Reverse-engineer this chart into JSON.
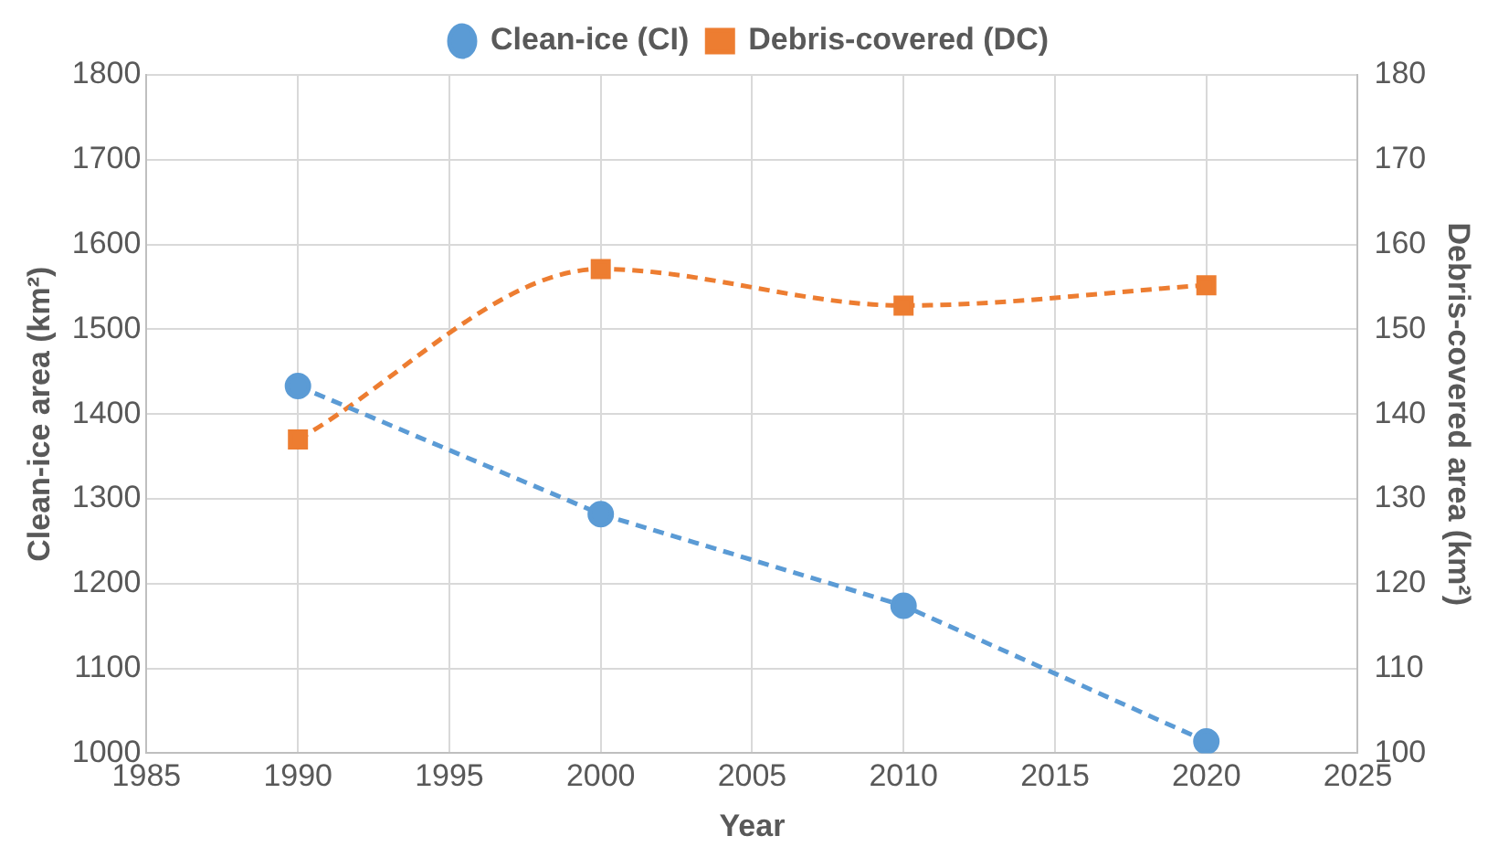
{
  "chart_data": {
    "type": "line",
    "xlabel": "Year",
    "ylabel": "Clean-ice area (km²)",
    "y2label": "Debris-covered area (km²)",
    "x": [
      1990,
      2000,
      2010,
      2020
    ],
    "series": [
      {
        "name": "Clean-ice (CI)",
        "color": "#5b9bd5",
        "values": [
          1433,
          1282,
          1174,
          1014
        ],
        "marker": "circle"
      },
      {
        "name": "Debris-covered (DC)",
        "color": "#ed7d31",
        "values": [
          137,
          157.1,
          152.8,
          155.2
        ],
        "axis": "y2",
        "marker": "square"
      }
    ],
    "xlim": [
      1985,
      2025
    ],
    "xticks": [
      1985,
      1990,
      1995,
      2000,
      2005,
      2010,
      2015,
      2020,
      2025
    ],
    "ylim": [
      1000,
      1800
    ],
    "yticks": [
      1000,
      1100,
      1200,
      1300,
      1400,
      1500,
      1600,
      1700,
      1800
    ],
    "y2lim": [
      100,
      180
    ],
    "y2ticks": [
      100,
      110,
      120,
      130,
      140,
      150,
      160,
      170,
      180
    ],
    "grid": true,
    "legend": "top",
    "line_style": "dashed"
  }
}
